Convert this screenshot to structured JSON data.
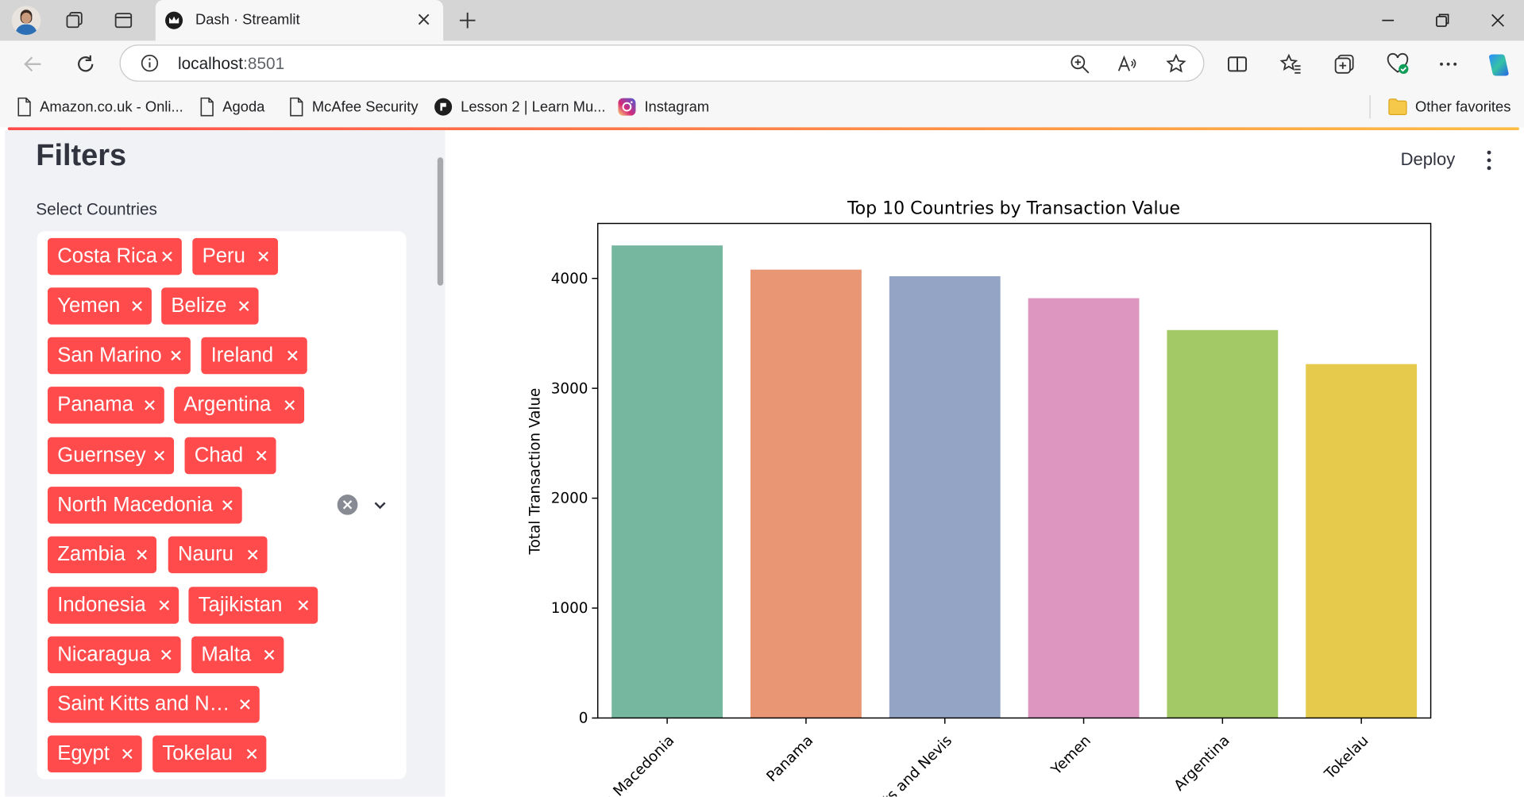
{
  "browser": {
    "tab_title": "Dash · Streamlit",
    "url_host": "localhost",
    "url_port": ":8501",
    "favorites": [
      {
        "label": "Amazon.co.uk - Onli...",
        "icon": "page-icon"
      },
      {
        "label": "Agoda",
        "icon": "page-icon"
      },
      {
        "label": "McAfee Security",
        "icon": "page-icon"
      },
      {
        "label": "Lesson 2 | Learn Mu...",
        "icon": "lesson-logo-icon"
      },
      {
        "label": "Instagram",
        "icon": "instagram-icon"
      }
    ],
    "other_favorites": "Other favorites"
  },
  "sidebar": {
    "title": "Filters",
    "select_label": "Select Countries",
    "pills": [
      "Costa Rica",
      "Peru",
      "Yemen",
      "Belize",
      "San Marino",
      "Ireland",
      "Panama",
      "Argentina",
      "Guernsey",
      "Chad",
      "North Macedonia",
      "Zambia",
      "Nauru",
      "Indonesia",
      "Tajikistan",
      "Nicaragua",
      "Malta",
      "Saint Kitts and N…",
      "Egypt",
      "Tokelau"
    ]
  },
  "main": {
    "deploy_label": "Deploy"
  },
  "colors": {
    "accent": "#ff4b4b",
    "sidebar_bg": "#f0f2f6"
  },
  "chart_data": {
    "type": "bar",
    "title": "Top 10 Countries by Transaction Value",
    "xlabel": "",
    "ylabel": "Total Transaction Value",
    "ylim": [
      0,
      4500
    ],
    "yticks": [
      0,
      1000,
      2000,
      3000,
      4000
    ],
    "categories": [
      "North Macedonia",
      "Panama",
      "Saint Kitts and Nevis",
      "Yemen",
      "Argentina",
      "Tokelau"
    ],
    "visible_tick_labels": [
      "h Macedonia",
      "Panama",
      "ts and Nevis",
      "Yemen",
      "Argentina",
      "Tokelau"
    ],
    "values": [
      4300,
      4080,
      4020,
      3820,
      3530,
      3220
    ],
    "colors": [
      "#76b7a0",
      "#e99675",
      "#94a4c4",
      "#dc96c0",
      "#a3c866",
      "#e5ca4c"
    ]
  }
}
